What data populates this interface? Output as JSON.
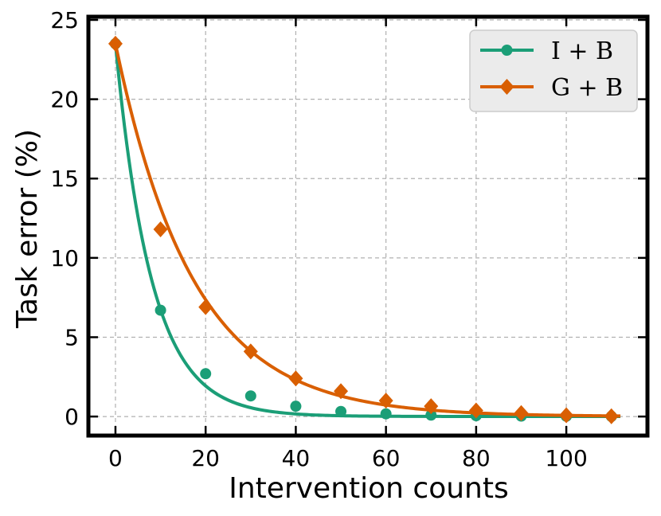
{
  "chart_data": {
    "type": "line",
    "title": "",
    "xlabel": "Intervention counts",
    "ylabel": "Task error (%)",
    "xlim": [
      -6,
      118
    ],
    "ylim": [
      -1.2,
      25.2
    ],
    "xticks": [
      0,
      20,
      40,
      60,
      80,
      100
    ],
    "yticks": [
      0,
      5,
      10,
      15,
      20,
      25
    ],
    "grid": true,
    "legend_position": "top-right",
    "x_end": 112,
    "series": [
      {
        "name": "I + B",
        "color": "#1b9e77",
        "marker": "circle",
        "x": [
          0,
          10,
          20,
          30,
          40,
          50,
          60,
          70,
          80,
          90,
          100,
          110
        ],
        "values": [
          23.5,
          6.7,
          2.7,
          1.3,
          0.65,
          0.32,
          0.17,
          0.09,
          0.05,
          0.03,
          0.02,
          0.01
        ],
        "curve": {
          "a": 23.5,
          "k": 0.125,
          "b": 0.005
        }
      },
      {
        "name": "G + B",
        "color": "#d95f02",
        "marker": "diamond",
        "x": [
          0,
          10,
          20,
          30,
          40,
          50,
          60,
          70,
          80,
          90,
          100,
          110
        ],
        "values": [
          23.5,
          11.8,
          6.9,
          4.1,
          2.4,
          1.6,
          1.0,
          0.65,
          0.38,
          0.22,
          0.08,
          0.02
        ],
        "curve": {
          "a": 23.5,
          "k": 0.058,
          "b": 0.0
        }
      }
    ]
  }
}
